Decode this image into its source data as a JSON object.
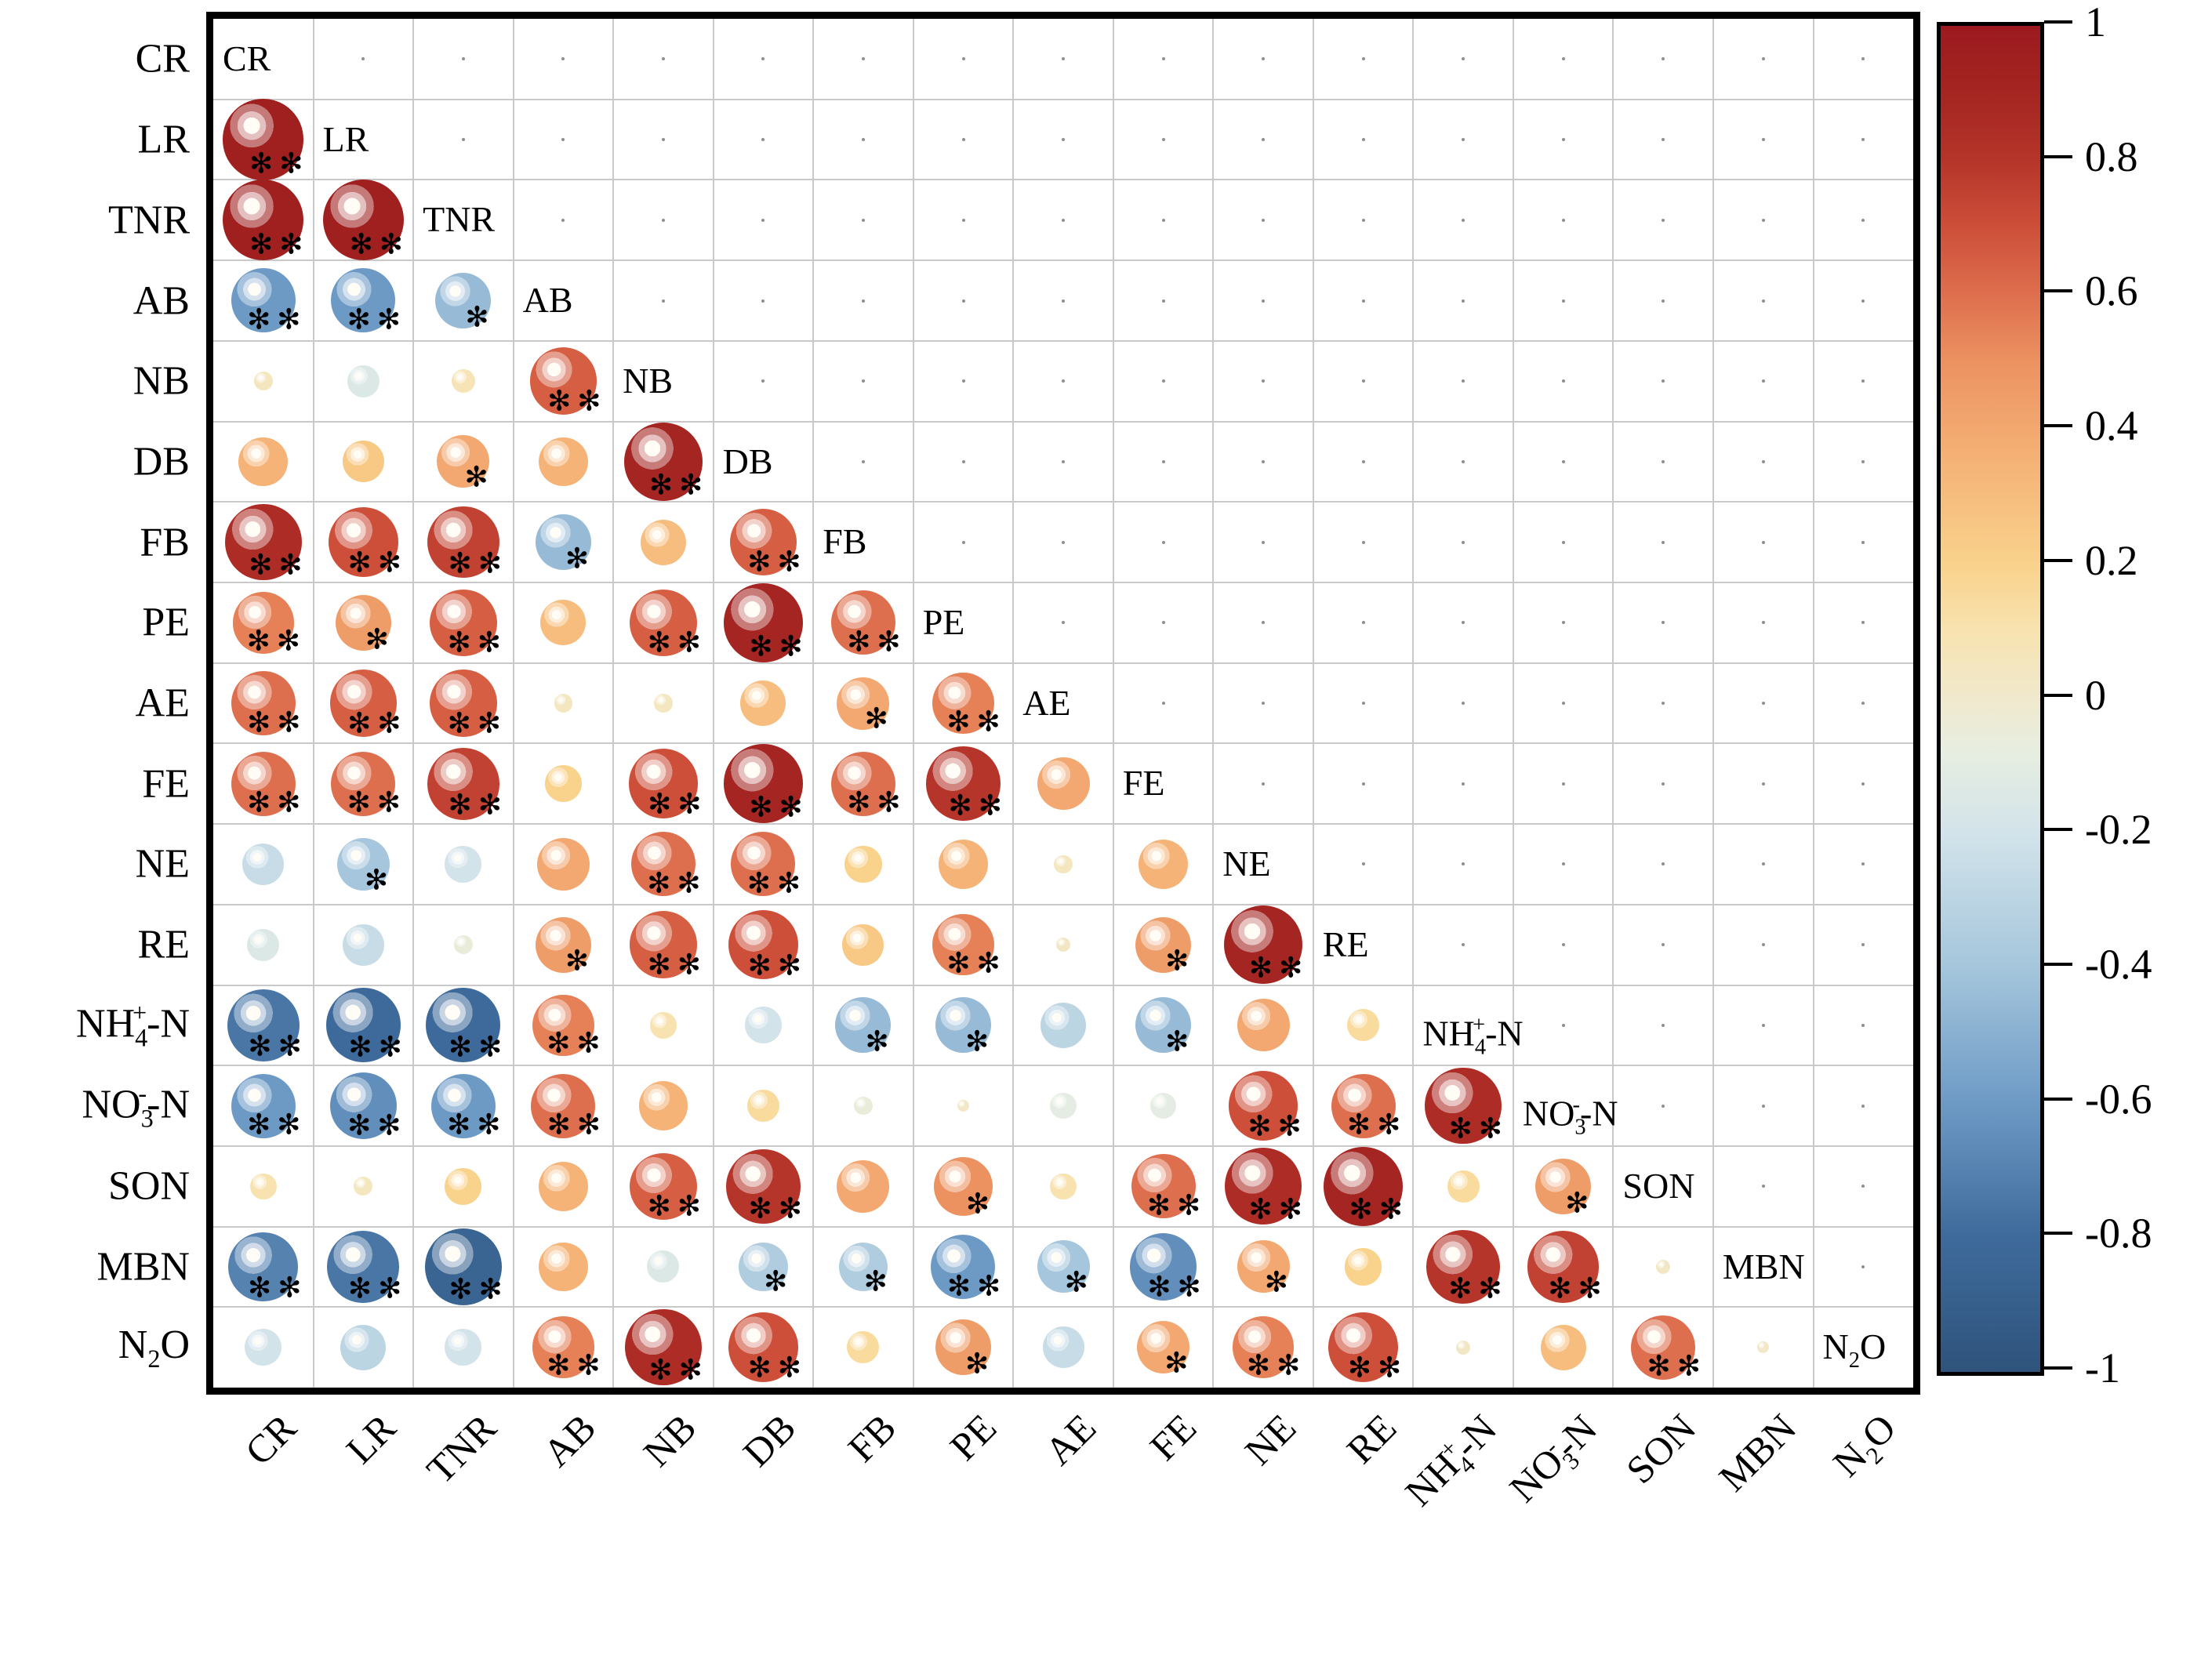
{
  "chart_data": {
    "type": "heatmap",
    "subtype": "correlation-bubble-matrix-lower-triangle",
    "title": "",
    "variables": [
      "CR",
      "LR",
      "TNR",
      "AB",
      "NB",
      "DB",
      "FB",
      "PE",
      "AE",
      "FE",
      "NE",
      "RE",
      "NH4+-N",
      "NO3--N",
      "SON",
      "MBN",
      "N2O"
    ],
    "variable_parts": [
      [
        [
          "CR",
          ""
        ]
      ],
      [
        [
          "LR",
          ""
        ]
      ],
      [
        [
          "TNR",
          ""
        ]
      ],
      [
        [
          "AB",
          ""
        ]
      ],
      [
        [
          "NB",
          ""
        ]
      ],
      [
        [
          "DB",
          ""
        ]
      ],
      [
        [
          "FB",
          ""
        ]
      ],
      [
        [
          "PE",
          ""
        ]
      ],
      [
        [
          "AE",
          ""
        ]
      ],
      [
        [
          "FE",
          ""
        ]
      ],
      [
        [
          "NE",
          ""
        ]
      ],
      [
        [
          "RE",
          ""
        ]
      ],
      [
        [
          "NH",
          ""
        ],
        [
          "4",
          "sub"
        ],
        [
          "+",
          "supstack"
        ],
        [
          "-N",
          ""
        ]
      ],
      [
        [
          "NO",
          ""
        ],
        [
          "3",
          "sub"
        ],
        [
          "-",
          "supstack"
        ],
        [
          "-N",
          ""
        ]
      ],
      [
        [
          "SON",
          ""
        ]
      ],
      [
        [
          "MBN",
          ""
        ]
      ],
      [
        [
          "N",
          ""
        ],
        [
          "2",
          "sub"
        ],
        [
          "O",
          ""
        ]
      ]
    ],
    "significance_note": {
      "single_star": "*",
      "double_star": "**"
    },
    "r": [
      [],
      [
        0.95
      ],
      [
        0.95,
        0.95
      ],
      [
        -0.6,
        -0.6,
        -0.45
      ],
      [
        0.05,
        -0.15,
        0.08,
        0.65
      ],
      [
        0.35,
        0.25,
        0.4,
        0.35,
        0.9
      ],
      [
        0.85,
        0.7,
        0.75,
        -0.45,
        0.3,
        0.65
      ],
      [
        0.55,
        0.45,
        0.65,
        0.3,
        0.65,
        0.9,
        0.6
      ],
      [
        0.6,
        0.65,
        0.65,
        0.05,
        0.05,
        0.3,
        0.4,
        0.55
      ],
      [
        0.6,
        0.6,
        0.75,
        0.2,
        0.7,
        0.9,
        0.6,
        0.8,
        0.4
      ],
      [
        -0.25,
        -0.4,
        -0.2,
        0.4,
        0.6,
        0.6,
        0.2,
        0.35,
        0.05,
        0.35
      ],
      [
        -0.15,
        -0.25,
        -0.05,
        0.45,
        0.65,
        0.7,
        0.25,
        0.55,
        0.03,
        0.45,
        0.9
      ],
      [
        -0.75,
        -0.8,
        -0.8,
        0.55,
        0.1,
        -0.2,
        -0.45,
        -0.45,
        -0.3,
        -0.45,
        0.4,
        0.15
      ],
      [
        -0.6,
        -0.65,
        -0.6,
        0.6,
        0.35,
        0.15,
        -0.05,
        0.02,
        -0.1,
        -0.1,
        0.7,
        0.6,
        0.85
      ],
      [
        0.1,
        0.05,
        0.2,
        0.35,
        0.65,
        0.8,
        0.4,
        0.5,
        0.1,
        0.6,
        0.85,
        0.9,
        0.15,
        0.45
      ],
      [
        -0.7,
        -0.75,
        -0.85,
        0.35,
        -0.15,
        -0.35,
        -0.35,
        -0.6,
        -0.4,
        -0.65,
        0.4,
        0.2,
        0.8,
        0.75,
        0.03
      ],
      [
        -0.2,
        -0.3,
        -0.2,
        0.55,
        0.85,
        0.7,
        0.15,
        0.45,
        -0.25,
        0.4,
        0.55,
        0.7,
        0.03,
        0.3,
        0.6,
        0.02
      ]
    ],
    "sig": [
      [],
      [
        "**"
      ],
      [
        "**",
        "**"
      ],
      [
        "**",
        "**",
        "*"
      ],
      [
        "",
        "",
        "",
        "**"
      ],
      [
        "",
        "",
        "*",
        "",
        "**"
      ],
      [
        "**",
        "**",
        "**",
        "*",
        "",
        "**"
      ],
      [
        "**",
        "*",
        "**",
        "",
        "**",
        "**",
        "**"
      ],
      [
        "**",
        "**",
        "**",
        "",
        "",
        "",
        "*",
        "**"
      ],
      [
        "**",
        "**",
        "**",
        "",
        "**",
        "**",
        "**",
        "**",
        ""
      ],
      [
        "",
        "*",
        "",
        "",
        "**",
        "**",
        "",
        "",
        "",
        ""
      ],
      [
        "",
        "",
        "",
        "*",
        "**",
        "**",
        "",
        "**",
        "",
        "*",
        "**"
      ],
      [
        "**",
        "**",
        "**",
        "**",
        "",
        "",
        "*",
        "*",
        "",
        "*",
        "",
        ""
      ],
      [
        "**",
        "**",
        "**",
        "**",
        "",
        "",
        "",
        "",
        "",
        "",
        "**",
        "**",
        "**"
      ],
      [
        "",
        "",
        "",
        "",
        "**",
        "**",
        "",
        "*",
        "",
        "**",
        "**",
        "**",
        "",
        "*"
      ],
      [
        "**",
        "**",
        "**",
        "",
        "",
        "*",
        "*",
        "**",
        "*",
        "**",
        "*",
        "",
        "**",
        "**",
        ""
      ],
      [
        "",
        "",
        "",
        "**",
        "**",
        "**",
        "",
        "*",
        "",
        "*",
        "**",
        "**",
        "",
        "",
        "**",
        ""
      ]
    ],
    "colorbar": {
      "min": -1,
      "max": 1,
      "ticks": [
        "1",
        "0.8",
        "0.6",
        "0.4",
        "0.2",
        "0",
        "-0.2",
        "-0.4",
        "-0.6",
        "-0.8",
        "-1"
      ],
      "position": "right"
    },
    "colormap": [
      [
        -1.0,
        "#2f547c"
      ],
      [
        -0.8,
        "#3e6a9b"
      ],
      [
        -0.6,
        "#6d9ac5"
      ],
      [
        -0.4,
        "#a5c6dc"
      ],
      [
        -0.2,
        "#d2e3ea"
      ],
      [
        -0.08,
        "#e7eee1"
      ],
      [
        0.0,
        "#f0e9ce"
      ],
      [
        0.1,
        "#f8e3b0"
      ],
      [
        0.2,
        "#f9d28c"
      ],
      [
        0.35,
        "#f5b377"
      ],
      [
        0.5,
        "#ec9261"
      ],
      [
        0.6,
        "#de6f4e"
      ],
      [
        0.7,
        "#cd4f39"
      ],
      [
        0.8,
        "#b5352a"
      ],
      [
        0.9,
        "#a42521"
      ],
      [
        1.0,
        "#9c1a1f"
      ]
    ],
    "star_glyph": "✻",
    "grid": true,
    "legend_position": "none"
  }
}
